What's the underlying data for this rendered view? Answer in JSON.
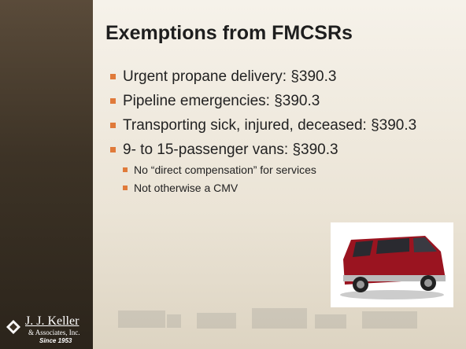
{
  "title": "Exemptions from FMCSRs",
  "bullets": [
    {
      "text": "Urgent propane delivery: §390.3"
    },
    {
      "text": "Pipeline emergencies: §390.3"
    },
    {
      "text": "Transporting sick, injured, deceased: §390.3"
    },
    {
      "text": "9- to 15-passenger vans: §390.3",
      "sub": [
        "No “direct compensation” for services",
        "Not otherwise a CMV"
      ]
    }
  ],
  "logo": {
    "name": "J. J. Keller",
    "company": "& Associates, Inc.",
    "since": "Since 1953"
  }
}
